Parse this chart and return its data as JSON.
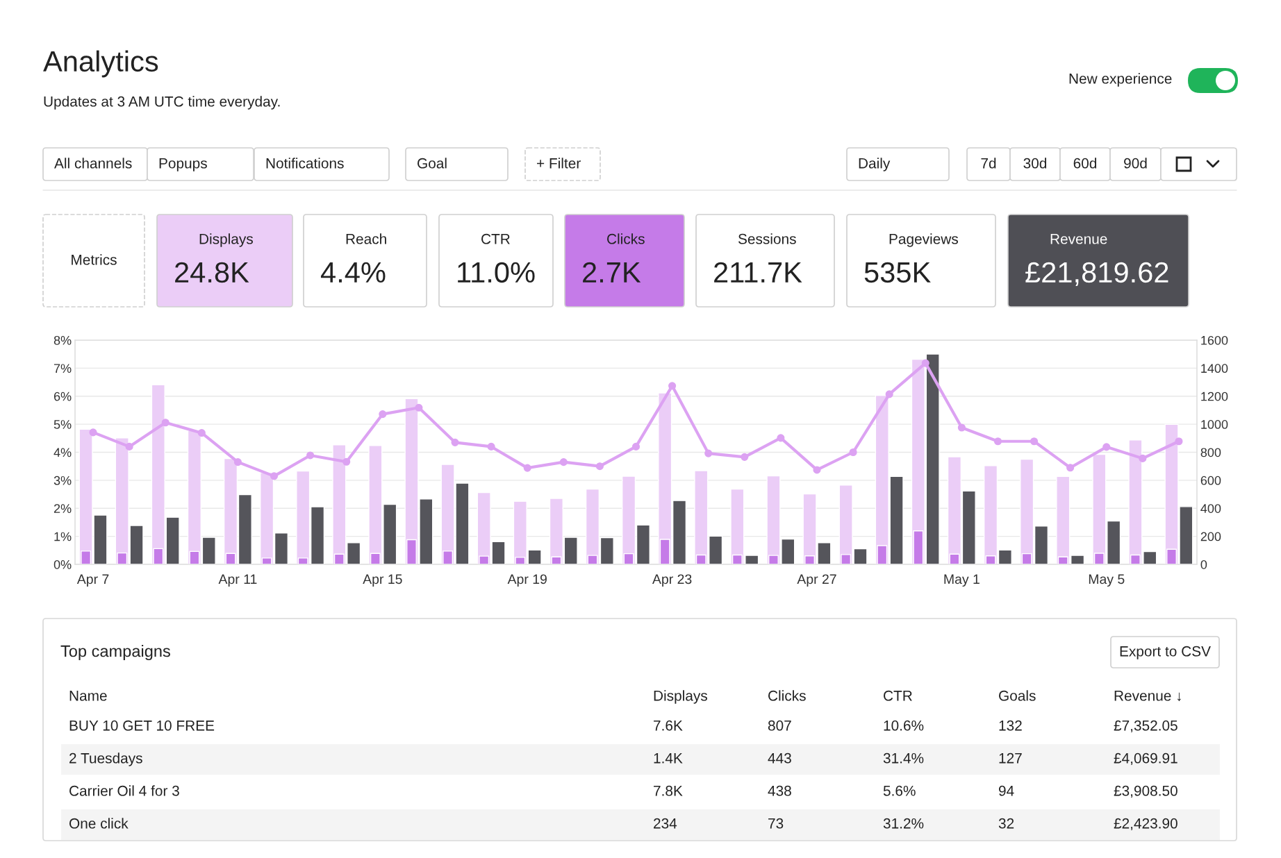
{
  "chart_data": [
    {
      "type": "other",
      "title": "Analytics",
      "subtitle": "Updates at 3 AM UTC time everyday.",
      "annotations": [
        "New experience",
        "All channels",
        "Popups",
        "Notifications",
        "Goal",
        "+ Filter",
        "Daily",
        "7d",
        "30d",
        "60d",
        "90d"
      ]
    },
    {
      "type": "other",
      "categories": [
        "Metrics",
        "Displays",
        "Reach",
        "CTR",
        "Clicks",
        "Sessions",
        "Pageviews",
        "Revenue"
      ],
      "value_labels": [
        null,
        "24.8K",
        "4.4%",
        "11.0%",
        "2.7K",
        "211.7K",
        "535K",
        "£21,819.62"
      ],
      "colors": [
        "#ffffff",
        "#ebcdf7",
        "#ffffff",
        "#ffffff",
        "#c57be8",
        "#ffffff",
        "#ffffff",
        "#4f4f55"
      ]
    },
    {
      "type": "bar",
      "categories": [
        "Apr 7",
        null,
        null,
        null,
        "Apr 11",
        null,
        null,
        null,
        "Apr 15",
        null,
        null,
        null,
        "Apr 19",
        null,
        null,
        null,
        "Apr 23",
        null,
        null,
        null,
        "Apr 27",
        null,
        null,
        null,
        "May 1",
        null,
        null,
        null,
        "May 5",
        null,
        null
      ],
      "series": [
        {
          "type": "bar",
          "axis": "y2",
          "color": "#ebcdf7",
          "values": [
            965,
            903,
            1281,
            954,
            755,
            655,
            666,
            853,
            848,
            1183,
            713,
            512,
            450,
            470,
            537,
            629,
            1223,
            669,
            537,
            631,
            502,
            566,
            1206,
            1463,
            768,
            704,
            750,
            628,
            785,
            888,
            999
          ]
        },
        {
          "type": "bar",
          "axis": "y2",
          "color": "#c57be8",
          "values": [
            95,
            81,
            112,
            92,
            78,
            45,
            45,
            73,
            78,
            176,
            95,
            59,
            50,
            53,
            64,
            76,
            178,
            67,
            67,
            64,
            61,
            70,
            134,
            239,
            73,
            61,
            76,
            53,
            79,
            67,
            108
          ]
        },
        {
          "type": "bar",
          "axis": "y2",
          "color": "#55555b",
          "values": [
            352,
            277,
            336,
            193,
            498,
            224,
            411,
            154,
            428,
            467,
            579,
            162,
            103,
            193,
            190,
            281,
            455,
            201,
            64,
            181,
            155,
            111,
            628,
            1501,
            523,
            102,
            274,
            64,
            309,
            91,
            412
          ]
        },
        {
          "type": "line",
          "axis": "y",
          "color": "#dca2f2",
          "values": [
            4.71,
            4.2,
            5.06,
            4.69,
            3.65,
            3.15,
            3.89,
            3.66,
            5.36,
            5.59,
            4.35,
            4.2,
            3.44,
            3.65,
            3.5,
            4.2,
            6.37,
            3.96,
            3.83,
            4.51,
            3.37,
            4.0,
            6.07,
            7.18,
            4.88,
            4.39,
            4.39,
            3.45,
            4.19,
            3.78,
            4.39
          ]
        }
      ],
      "ylim": [
        0,
        8
      ],
      "yticks": [
        {
          "value": 0,
          "label": "0%"
        },
        {
          "value": 1,
          "label": "1%"
        },
        {
          "value": 2,
          "label": "2%"
        },
        {
          "value": 3,
          "label": "3%"
        },
        {
          "value": 4,
          "label": "4%"
        },
        {
          "value": 5,
          "label": "5%"
        },
        {
          "value": 6,
          "label": "6%"
        },
        {
          "value": 7,
          "label": "7%"
        },
        {
          "value": 8,
          "label": "8%"
        }
      ],
      "y2lim": [
        0,
        1600
      ],
      "y2ticks": [
        0,
        200,
        400,
        600,
        800,
        1000,
        1200,
        1400,
        1600
      ],
      "grid": "y",
      "marker": "circle",
      "line_style": "solid"
    },
    {
      "type": "other",
      "title": "Top campaigns",
      "annotations": [
        "Export to CSV"
      ],
      "categories": [
        "Name",
        "Displays",
        "Clicks",
        "CTR",
        "Goals",
        "Revenue ↓"
      ],
      "cell_labels": [
        [
          "BUY 10 GET 10 FREE",
          "7.6K",
          "807",
          "10.6%",
          "132",
          "£7,352.05"
        ],
        [
          "2 Tuesdays",
          "1.4K",
          "443",
          "31.4%",
          "127",
          "£4,069.91"
        ],
        [
          "Carrier Oil 4 for 3",
          "7.8K",
          "438",
          "5.6%",
          "94",
          "£3,908.50"
        ],
        [
          "One click",
          "234",
          "73",
          "31.2%",
          "32",
          "£2,423.90"
        ]
      ]
    }
  ]
}
